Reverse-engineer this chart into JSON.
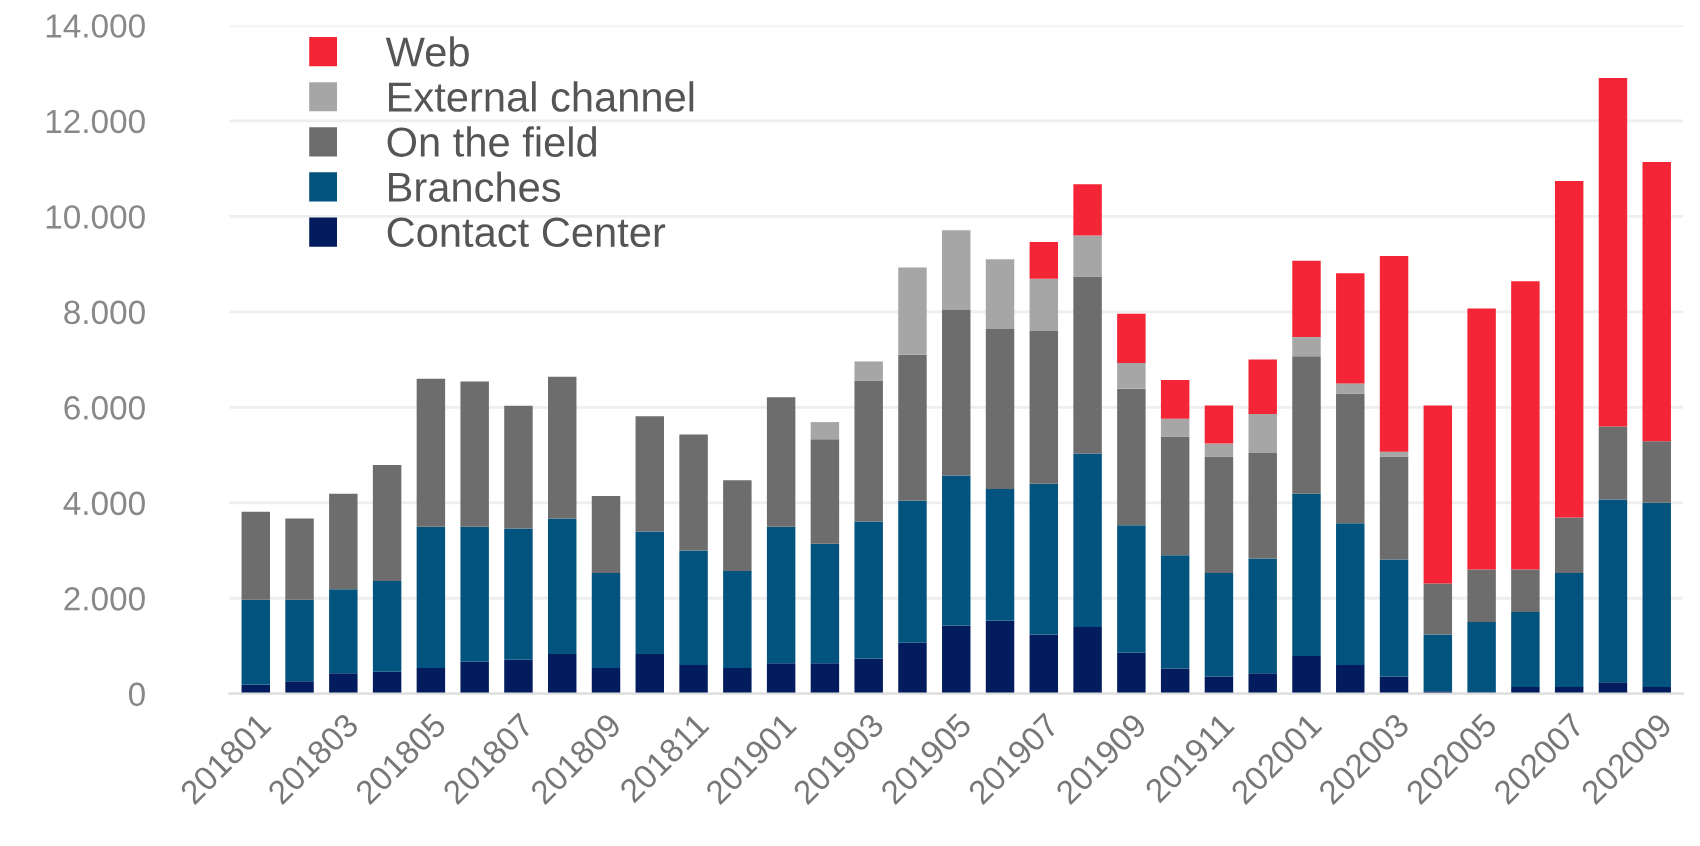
{
  "chart_data": {
    "type": "bar",
    "stacked": true,
    "legend": "top left",
    "grid": "y",
    "categories": [
      "201801",
      null,
      "201803",
      null,
      "201805",
      null,
      "201807",
      null,
      "201809",
      null,
      "201811",
      null,
      "201901",
      null,
      "201903",
      null,
      "201905",
      null,
      "201907",
      null,
      "201909",
      null,
      "201911",
      null,
      "202001",
      null,
      "202003",
      null,
      "202005",
      null,
      "202007",
      null,
      "202009"
    ],
    "ylim": [
      0,
      14000
    ],
    "yticks": [
      0,
      {
        "value": 2000,
        "label": "2.000"
      },
      {
        "value": 4000,
        "label": "4.000"
      },
      {
        "value": 6000,
        "label": "6.000"
      },
      {
        "value": 8000,
        "label": "8.000"
      },
      {
        "value": 10000,
        "label": "10.000"
      },
      {
        "value": 12000,
        "label": "12.000"
      },
      {
        "value": 14000,
        "label": "14.000"
      }
    ],
    "series": [
      {
        "name": "Contact Center",
        "color": "#021c5e",
        "values": [
          190,
          260,
          430,
          460,
          540,
          670,
          710,
          830,
          540,
          830,
          600,
          540,
          640,
          640,
          740,
          1070,
          1430,
          1530,
          1240,
          1400,
          860,
          530,
          360,
          430,
          790,
          600,
          360,
          50,
          30,
          140,
          140,
          240,
          140
        ]
      },
      {
        "name": "Branches",
        "color": "#02547f",
        "values": [
          1780,
          1710,
          1760,
          1900,
          2960,
          2830,
          2750,
          2840,
          1990,
          2570,
          2400,
          2030,
          2860,
          2500,
          2870,
          2970,
          3140,
          2760,
          3160,
          3630,
          2670,
          2370,
          2170,
          2400,
          3400,
          2970,
          2450,
          1190,
          1470,
          1570,
          2390,
          3830,
          3860
        ]
      },
      {
        "name": "On the field",
        "color": "#6d6d6d",
        "values": [
          1840,
          1700,
          2000,
          2430,
          3100,
          3040,
          2570,
          2970,
          1610,
          2410,
          2430,
          1900,
          2710,
          2190,
          2950,
          3060,
          3470,
          3350,
          3200,
          3710,
          2860,
          2490,
          2430,
          2210,
          2880,
          2720,
          2160,
          1070,
          1100,
          890,
          1160,
          1530,
          1290
        ]
      },
      {
        "name": "External channel",
        "color": "#a6a6a6",
        "values": [
          0,
          0,
          0,
          0,
          0,
          0,
          0,
          0,
          0,
          0,
          0,
          0,
          0,
          360,
          400,
          1830,
          1670,
          1460,
          1090,
          860,
          540,
          370,
          280,
          820,
          400,
          210,
          100,
          0,
          0,
          0,
          0,
          0,
          0
        ]
      },
      {
        "name": "Web",
        "color": "#f42536",
        "values": [
          0,
          0,
          0,
          0,
          0,
          0,
          0,
          0,
          0,
          0,
          0,
          0,
          0,
          0,
          0,
          0,
          0,
          0,
          770,
          1070,
          1030,
          810,
          800,
          1140,
          1600,
          2310,
          4100,
          3730,
          5470,
          6040,
          7050,
          7300,
          5850
        ]
      }
    ]
  }
}
